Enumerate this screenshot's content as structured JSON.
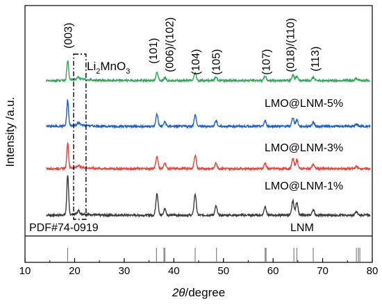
{
  "chart_data": {
    "type": "line",
    "xlabel_symbol": "2θ",
    "xlabel_unit": "/degree",
    "ylabel": "Intensity /a.u.",
    "xlim": [
      10,
      80
    ],
    "x_ticks": [
      10,
      20,
      30,
      40,
      50,
      60,
      70,
      80
    ],
    "y_ticks_shown": false,
    "grid": false,
    "peak_labels": [
      {
        "text": "(003)",
        "x": 18.6
      },
      {
        "text": "(101)",
        "x": 36.6
      },
      {
        "text": "(006)/(102)",
        "x": 38.2
      },
      {
        "text": "(104)",
        "x": 44.3
      },
      {
        "text": "(105)",
        "x": 48.4
      },
      {
        "text": "(107)",
        "x": 58.5
      },
      {
        "text": "(018)/(110)",
        "x": 64.0
      },
      {
        "text": "(113)",
        "x": 67.8
      }
    ],
    "impurity_region": {
      "label_base": "Li",
      "label_sub1": "2",
      "label_mid": "MnO",
      "label_sub2": "3",
      "x_range": [
        19.8,
        22.3
      ]
    },
    "reference": {
      "label": "PDF#74-0919",
      "sticks": [
        {
          "x": 18.6,
          "h": 1.0
        },
        {
          "x": 36.5,
          "h": 1.0
        },
        {
          "x": 38.0,
          "h": 1.0
        },
        {
          "x": 38.2,
          "h": 1.0
        },
        {
          "x": 44.3,
          "h": 1.0
        },
        {
          "x": 48.6,
          "h": 1.0
        },
        {
          "x": 58.4,
          "h": 1.0
        },
        {
          "x": 58.6,
          "h": 1.0
        },
        {
          "x": 64.2,
          "h": 1.0
        },
        {
          "x": 64.8,
          "h": 1.0
        },
        {
          "x": 68.1,
          "h": 1.0
        },
        {
          "x": 76.8,
          "h": 1.0
        },
        {
          "x": 77.2,
          "h": 1.0
        },
        {
          "x": 77.5,
          "h": 1.0
        }
      ]
    },
    "series": [
      {
        "name": "LNM",
        "color": "#3a3a3a",
        "level": 0,
        "peaks": [
          {
            "x": 18.6,
            "h": 3.6
          },
          {
            "x": 20.8,
            "h": 0.3
          },
          {
            "x": 36.6,
            "h": 2.0
          },
          {
            "x": 38.2,
            "h": 0.6
          },
          {
            "x": 44.3,
            "h": 1.9
          },
          {
            "x": 48.5,
            "h": 0.8
          },
          {
            "x": 58.4,
            "h": 0.8
          },
          {
            "x": 64.0,
            "h": 1.3
          },
          {
            "x": 64.8,
            "h": 1.2
          },
          {
            "x": 68.1,
            "h": 0.5
          },
          {
            "x": 76.8,
            "h": 0.3
          }
        ]
      },
      {
        "name": "LMO@LNM-1%",
        "color": "#e8443a",
        "level": 1,
        "peaks": [
          {
            "x": 18.6,
            "h": 2.3
          },
          {
            "x": 20.8,
            "h": 0.2
          },
          {
            "x": 36.6,
            "h": 1.1
          },
          {
            "x": 38.2,
            "h": 0.5
          },
          {
            "x": 44.3,
            "h": 1.2
          },
          {
            "x": 48.5,
            "h": 0.5
          },
          {
            "x": 58.4,
            "h": 0.5
          },
          {
            "x": 64.0,
            "h": 0.9
          },
          {
            "x": 64.8,
            "h": 0.8
          },
          {
            "x": 68.1,
            "h": 0.4
          },
          {
            "x": 76.8,
            "h": 0.2
          }
        ]
      },
      {
        "name": "LMO@LNM-3%",
        "color": "#1f5fcf",
        "level": 2,
        "peaks": [
          {
            "x": 18.6,
            "h": 2.3
          },
          {
            "x": 20.8,
            "h": 0.2
          },
          {
            "x": 36.6,
            "h": 1.1
          },
          {
            "x": 38.2,
            "h": 0.4
          },
          {
            "x": 44.3,
            "h": 1.0
          },
          {
            "x": 48.5,
            "h": 0.5
          },
          {
            "x": 58.4,
            "h": 0.5
          },
          {
            "x": 64.0,
            "h": 0.8
          },
          {
            "x": 64.8,
            "h": 0.6
          },
          {
            "x": 68.1,
            "h": 0.4
          },
          {
            "x": 76.8,
            "h": 0.2
          }
        ]
      },
      {
        "name": "LMO@LNM-5%",
        "color": "#2faa5a",
        "level": 3,
        "peaks": [
          {
            "x": 18.6,
            "h": 1.8
          },
          {
            "x": 20.8,
            "h": 0.2
          },
          {
            "x": 36.6,
            "h": 0.7
          },
          {
            "x": 38.2,
            "h": 0.3
          },
          {
            "x": 44.3,
            "h": 0.7
          },
          {
            "x": 48.5,
            "h": 0.3
          },
          {
            "x": 58.4,
            "h": 0.4
          },
          {
            "x": 64.0,
            "h": 0.5
          },
          {
            "x": 64.8,
            "h": 0.4
          },
          {
            "x": 68.1,
            "h": 0.3
          },
          {
            "x": 76.8,
            "h": 0.2
          }
        ]
      }
    ]
  }
}
